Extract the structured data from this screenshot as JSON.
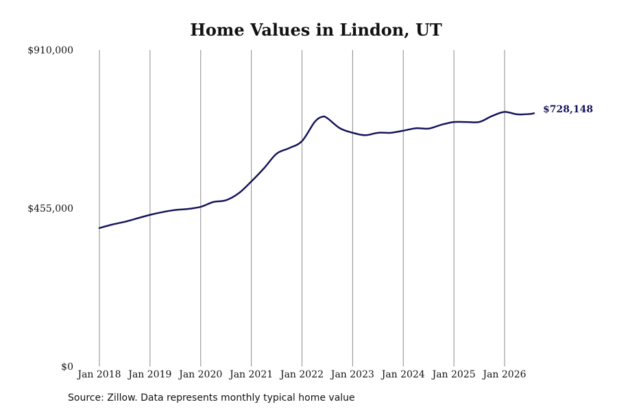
{
  "chart_data": {
    "type": "line",
    "title": "Home Values in Lindon, UT",
    "xlabel": "",
    "ylabel": "",
    "ylim": [
      0,
      910000
    ],
    "y_ticks": [
      {
        "value": 0,
        "label": "$0"
      },
      {
        "value": 455000,
        "label": "$455,000"
      },
      {
        "value": 910000,
        "label": "$910,000"
      }
    ],
    "x_ticks": [
      {
        "value": 2018.0,
        "label": "Jan 2018"
      },
      {
        "value": 2019.0,
        "label": "Jan 2019"
      },
      {
        "value": 2020.0,
        "label": "Jan 2020"
      },
      {
        "value": 2021.0,
        "label": "Jan 2021"
      },
      {
        "value": 2022.0,
        "label": "Jan 2022"
      },
      {
        "value": 2023.0,
        "label": "Jan 2023"
      },
      {
        "value": 2024.0,
        "label": "Jan 2024"
      },
      {
        "value": 2025.0,
        "label": "Jan 2025"
      },
      {
        "value": 2026.0,
        "label": "Jan 2026"
      }
    ],
    "xlim": [
      2018.0,
      2026.6
    ],
    "grid": "vertical",
    "series": [
      {
        "color": "#14145a",
        "points": [
          [
            2018.0,
            398000
          ],
          [
            2018.25,
            408000
          ],
          [
            2018.5,
            416000
          ],
          [
            2018.75,
            426000
          ],
          [
            2019.0,
            436000
          ],
          [
            2019.25,
            444000
          ],
          [
            2019.5,
            450000
          ],
          [
            2019.75,
            453000
          ],
          [
            2020.0,
            459000
          ],
          [
            2020.25,
            473000
          ],
          [
            2020.5,
            478000
          ],
          [
            2020.75,
            498000
          ],
          [
            2021.0,
            532000
          ],
          [
            2021.25,
            570000
          ],
          [
            2021.5,
            612000
          ],
          [
            2021.75,
            628000
          ],
          [
            2022.0,
            648000
          ],
          [
            2022.25,
            703000
          ],
          [
            2022.4,
            718000
          ],
          [
            2022.5,
            714000
          ],
          [
            2022.75,
            685000
          ],
          [
            2023.0,
            672000
          ],
          [
            2023.25,
            665000
          ],
          [
            2023.5,
            672000
          ],
          [
            2023.75,
            672000
          ],
          [
            2024.0,
            678000
          ],
          [
            2024.25,
            685000
          ],
          [
            2024.5,
            684000
          ],
          [
            2024.75,
            695000
          ],
          [
            2025.0,
            703000
          ],
          [
            2025.25,
            703000
          ],
          [
            2025.5,
            703000
          ],
          [
            2025.75,
            720000
          ],
          [
            2026.0,
            732000
          ],
          [
            2026.25,
            725000
          ],
          [
            2026.5,
            726000
          ],
          [
            2026.58,
            728148
          ]
        ]
      }
    ],
    "end_label": "$728,148"
  },
  "source": "Source: Zillow. Data represents monthly typical home value"
}
